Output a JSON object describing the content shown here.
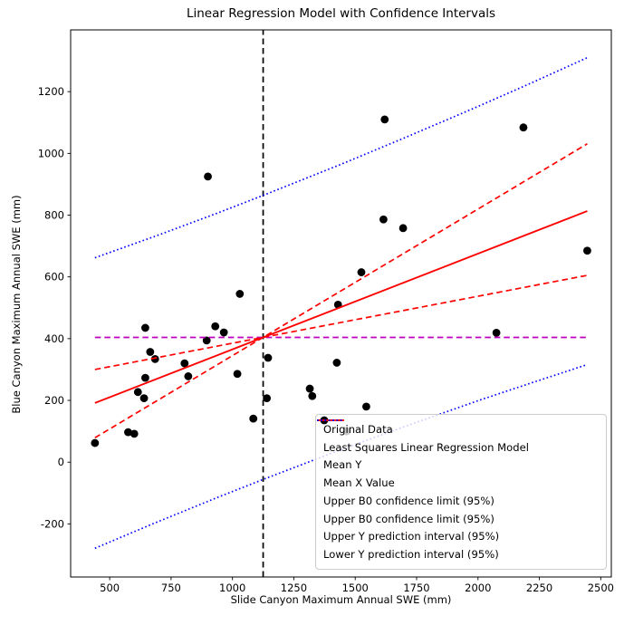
{
  "colors": {
    "red": "#ff0000",
    "magenta": "#bf00bf",
    "blue": "#0000ff",
    "black": "#000000",
    "spine": "#000000",
    "legend_border": "#cccccc"
  },
  "chart_data": {
    "type": "scatter",
    "title": "Linear Regression Model with Confidence Intervals",
    "xlabel": "Slide Canyon Maximum Annual SWE (mm)",
    "ylabel": "Blue Canyon Maximum Annual SWE (mm)",
    "grid": false,
    "xlim": [
      341,
      2543
    ],
    "ylim": [
      -372,
      1400
    ],
    "x_ticks": [
      500,
      750,
      1000,
      1250,
      1500,
      1750,
      2000,
      2250,
      2500
    ],
    "y_ticks": [
      -200,
      0,
      200,
      400,
      600,
      800,
      1000,
      1200
    ],
    "points": [
      [
        440,
        62
      ],
      [
        575,
        97
      ],
      [
        600,
        92
      ],
      [
        615,
        227
      ],
      [
        640,
        207
      ],
      [
        645,
        273
      ],
      [
        645,
        435
      ],
      [
        665,
        357
      ],
      [
        685,
        334
      ],
      [
        805,
        320
      ],
      [
        820,
        278
      ],
      [
        895,
        394
      ],
      [
        900,
        925
      ],
      [
        930,
        440
      ],
      [
        965,
        420
      ],
      [
        1020,
        286
      ],
      [
        1030,
        545
      ],
      [
        1085,
        141
      ],
      [
        1140,
        207
      ],
      [
        1145,
        338
      ],
      [
        1315,
        238
      ],
      [
        1325,
        214
      ],
      [
        1425,
        322
      ],
      [
        1430,
        510
      ],
      [
        1465,
        100
      ],
      [
        1525,
        615
      ],
      [
        1545,
        180
      ],
      [
        1615,
        786
      ],
      [
        1620,
        1110
      ],
      [
        1695,
        758
      ],
      [
        2075,
        419
      ],
      [
        2185,
        1084
      ],
      [
        2445,
        685
      ]
    ],
    "mean_x": 1125,
    "mean_y": 404,
    "regression": {
      "slope": 0.31,
      "intercept": 55.3,
      "x_range": [
        440,
        2445
      ]
    },
    "ci_upper": {
      "x": [
        440,
        2445
      ],
      "y": [
        79,
        1031
      ]
    },
    "ci_lower": {
      "x": [
        440,
        2445
      ],
      "y": [
        300,
        605
      ]
    },
    "pi_upper": {
      "x": [
        440,
        690,
        940,
        1125,
        1440,
        1700,
        2000,
        2200,
        2445
      ],
      "y": [
        662,
        733,
        807,
        864,
        964,
        1050,
        1152,
        1222,
        1310
      ]
    },
    "pi_lower": {
      "x": [
        440,
        690,
        940,
        1125,
        1440,
        1700,
        2000,
        2200,
        2445
      ],
      "y": [
        -279,
        -195,
        -114,
        -56,
        40,
        115,
        199,
        252,
        316
      ]
    },
    "legend": {
      "position": "lower right",
      "items": [
        {
          "label": "Original Data",
          "marker": "dot",
          "style": "solid",
          "color": "black"
        },
        {
          "label": "Least Squares Linear Regression Model",
          "marker": "line",
          "style": "solid",
          "color": "red"
        },
        {
          "label": "Mean Y",
          "marker": "line",
          "style": "dashed",
          "color": "magenta"
        },
        {
          "label": "Mean X Value",
          "marker": "line",
          "style": "dashed",
          "color": "black"
        },
        {
          "label": "Upper B0 confidence limit (95%)",
          "marker": "line",
          "style": "dashed",
          "color": "red"
        },
        {
          "label": "Upper B0 confidence limit (95%)",
          "marker": "line",
          "style": "dashed",
          "color": "red"
        },
        {
          "label": "Upper Y prediction interval (95%)",
          "marker": "line",
          "style": "dotted",
          "color": "blue"
        },
        {
          "label": "Lower Y prediction interval (95%)",
          "marker": "line",
          "style": "dotted",
          "color": "blue"
        }
      ]
    }
  }
}
